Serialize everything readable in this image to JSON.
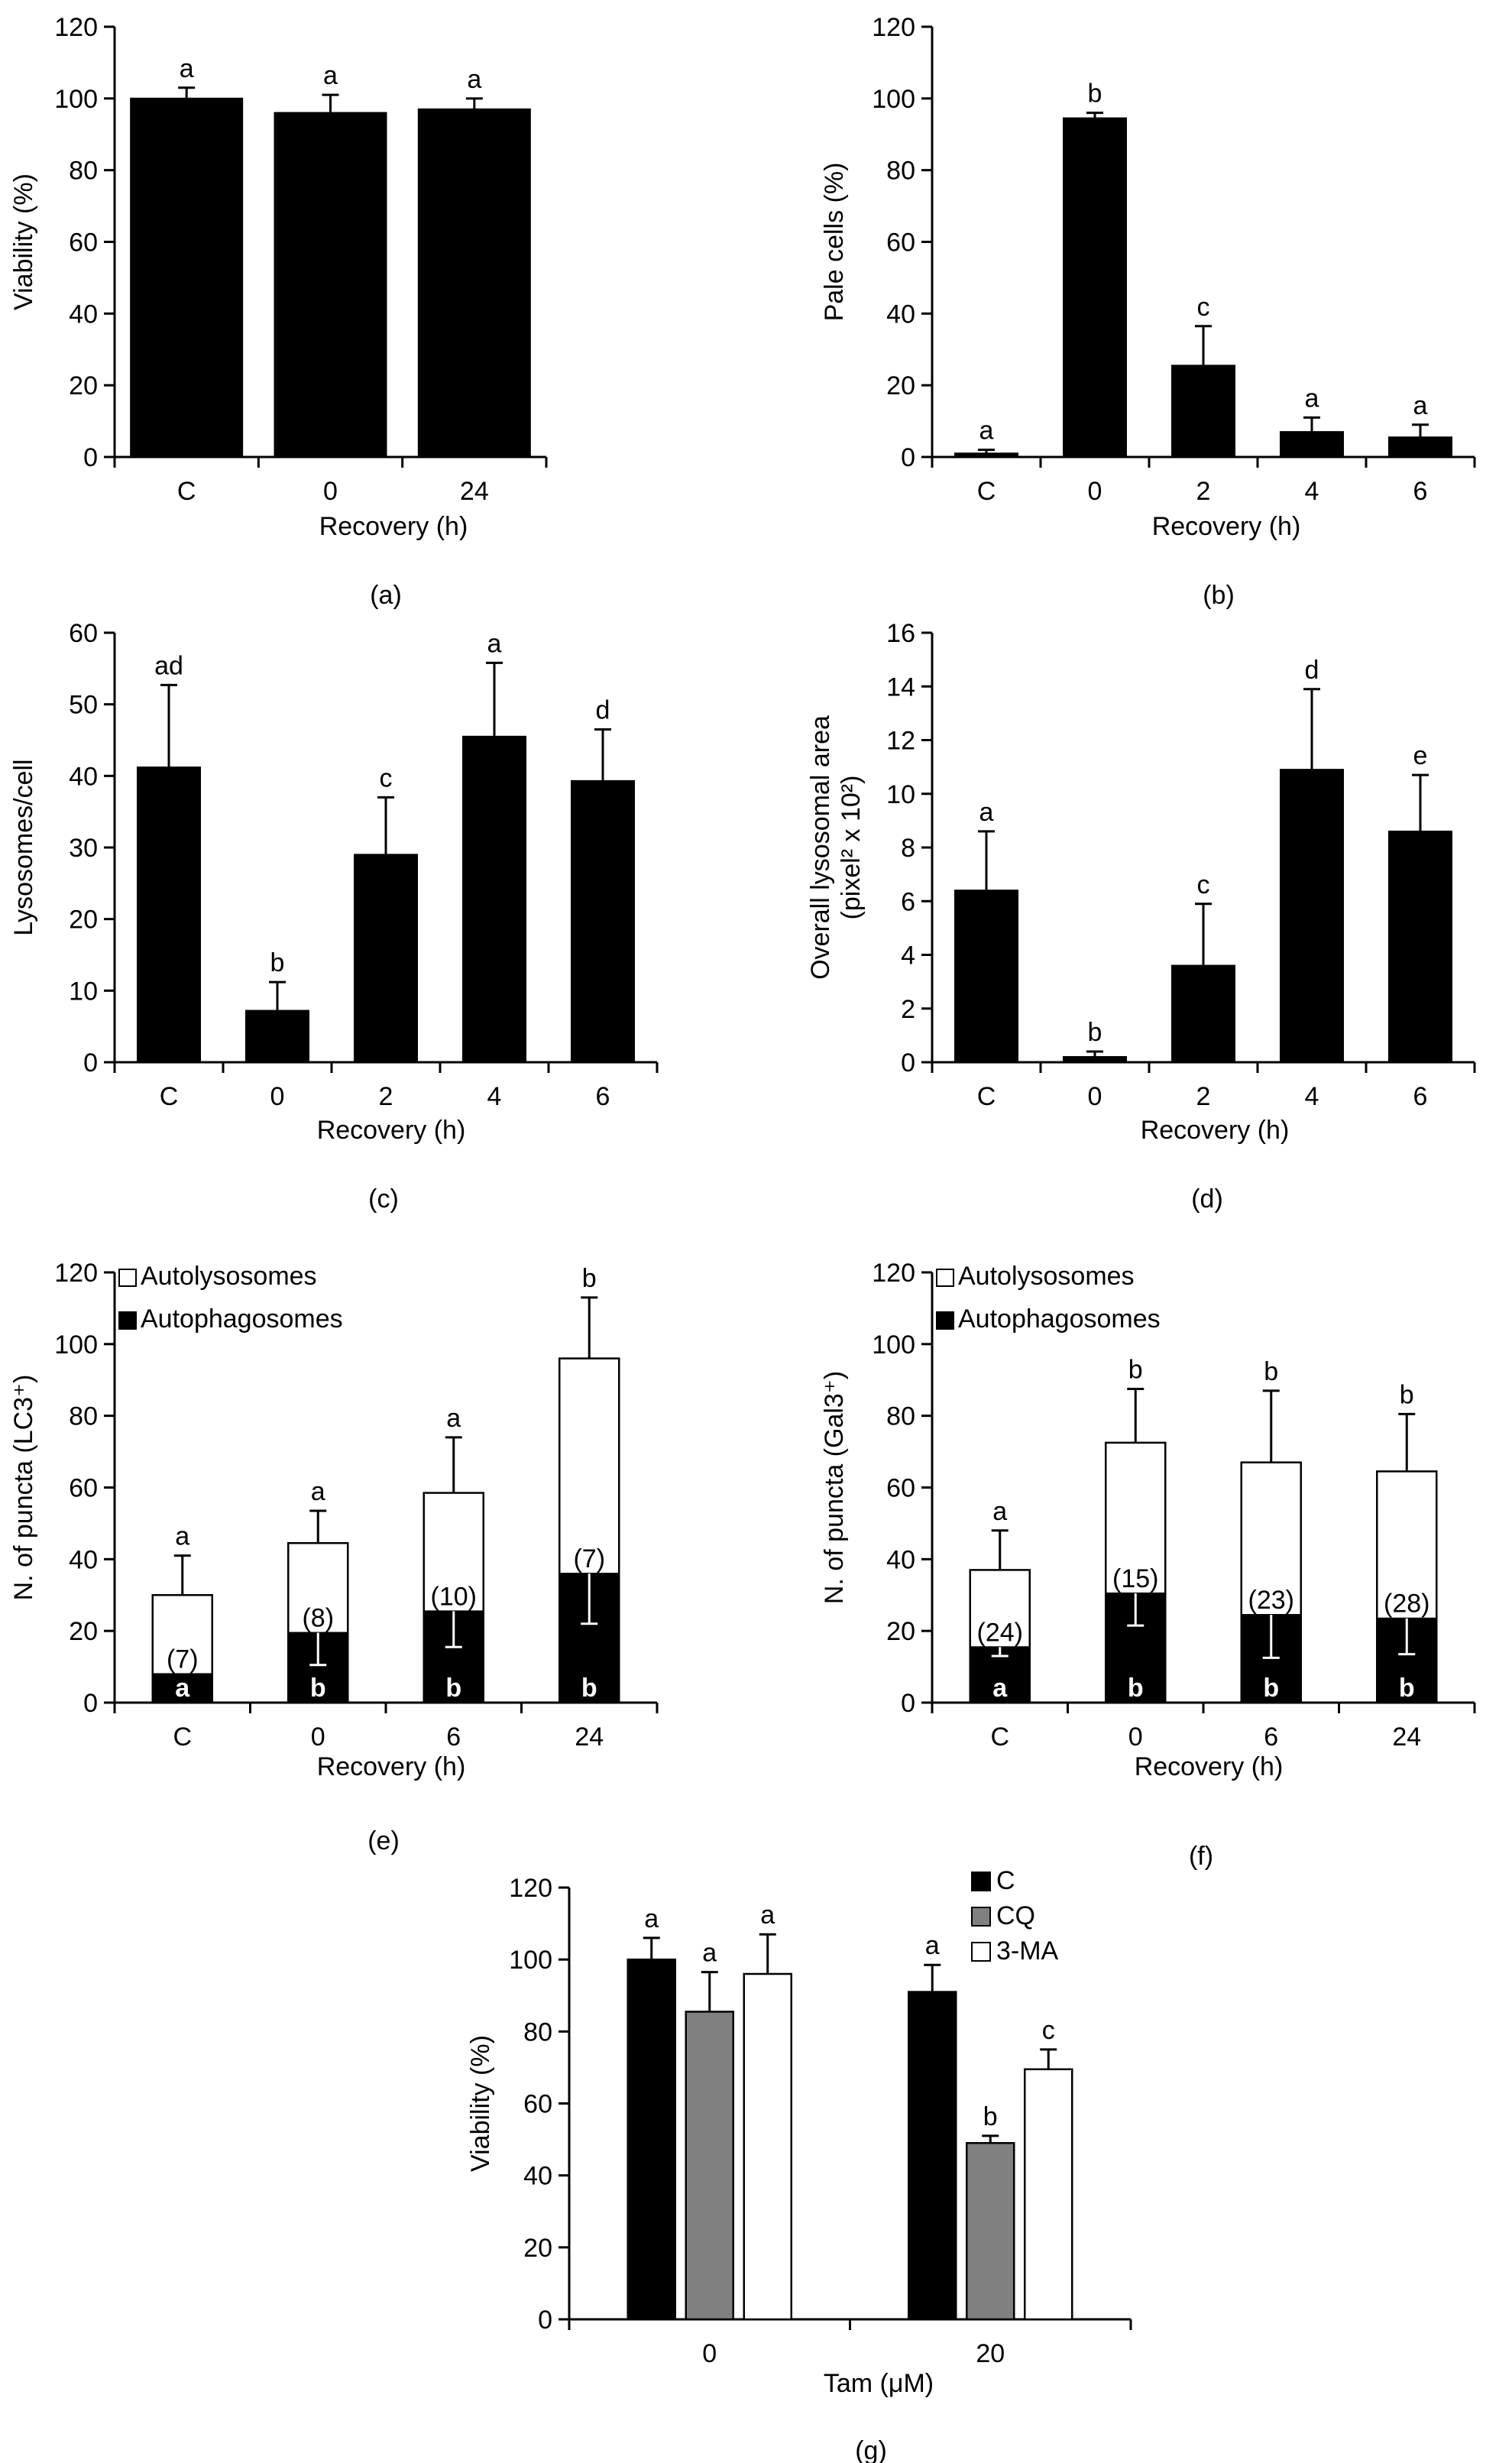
{
  "chart_data": [
    {
      "id": "a",
      "type": "bar",
      "panel_label": "(a)",
      "ylabel": "Viability (%)",
      "xlabel": "Recovery (h)",
      "ylim": [
        0,
        120
      ],
      "yticks": [
        0,
        20,
        40,
        60,
        80,
        100,
        120
      ],
      "categories": [
        "C",
        "0",
        "24"
      ],
      "values": [
        100,
        96,
        97
      ],
      "errors": [
        3,
        5,
        3
      ],
      "letters": [
        "a",
        "a",
        "a"
      ],
      "bar_color": "#000000"
    },
    {
      "id": "b",
      "type": "bar",
      "panel_label": "(b)",
      "ylabel": "Pale cells (%)",
      "xlabel": "Recovery (h)",
      "ylim": [
        0,
        120
      ],
      "yticks": [
        0,
        20,
        40,
        60,
        80,
        100,
        120
      ],
      "categories": [
        "C",
        "0",
        "2",
        "4",
        "6"
      ],
      "values": [
        1,
        94.5,
        25.5,
        7,
        5.5
      ],
      "errors": [
        1,
        1.5,
        11,
        4,
        3.5
      ],
      "letters": [
        "a",
        "b",
        "c",
        "a",
        "a"
      ],
      "bar_color": "#000000"
    },
    {
      "id": "c",
      "type": "bar",
      "panel_label": "(c)",
      "ylabel": "Lysosomes/cell",
      "xlabel": "Recovery (h)",
      "ylim": [
        0,
        60
      ],
      "yticks": [
        0,
        10,
        20,
        30,
        40,
        50,
        60
      ],
      "categories": [
        "C",
        "0",
        "2",
        "4",
        "6"
      ],
      "values": [
        41.2,
        7.2,
        29,
        45.5,
        39.3
      ],
      "errors": [
        11.5,
        4,
        8,
        10.3,
        7.2
      ],
      "letters": [
        "ad",
        "b",
        "c",
        "a",
        "d"
      ],
      "bar_color": "#000000"
    },
    {
      "id": "d",
      "type": "bar",
      "panel_label": "(d)",
      "ylabel_line1": "Overall lysosomal area",
      "ylabel_line2": "(pixel² x 10²)",
      "xlabel": "Recovery (h)",
      "ylim": [
        0,
        16
      ],
      "yticks": [
        0,
        2,
        4,
        6,
        8,
        10,
        12,
        14,
        16
      ],
      "categories": [
        "C",
        "0",
        "2",
        "4",
        "6"
      ],
      "values": [
        6.4,
        0.2,
        3.6,
        10.9,
        8.6
      ],
      "errors": [
        2.2,
        0.2,
        2.3,
        3,
        2.1
      ],
      "letters": [
        "a",
        "b",
        "c",
        "d",
        "e"
      ],
      "bar_color": "#000000"
    },
    {
      "id": "e",
      "type": "stacked-bar",
      "panel_label": "(e)",
      "ylabel": "N. of puncta (LC3⁺)",
      "xlabel": "Recovery (h)",
      "ylim": [
        0,
        120
      ],
      "yticks": [
        0,
        20,
        40,
        60,
        80,
        100,
        120
      ],
      "categories": [
        "C",
        "0",
        "6",
        "24"
      ],
      "series": [
        {
          "name": "Autophagosomes",
          "values": [
            8,
            19.5,
            25.5,
            36
          ],
          "errors": [
            0,
            9,
            10,
            14
          ],
          "letters": [
            "a",
            "b",
            "b",
            "b"
          ],
          "color": "#000000"
        },
        {
          "name": "Autolysosomes",
          "total_values": [
            30,
            44.5,
            58.5,
            96
          ],
          "errors": [
            11,
            9,
            15.5,
            17
          ],
          "letters": [
            "a",
            "a",
            "a",
            "b"
          ],
          "color": "#ffffff"
        }
      ],
      "annotations": [
        "(7)",
        "(8)",
        "(10)",
        "(7)"
      ]
    },
    {
      "id": "f",
      "type": "stacked-bar",
      "panel_label": "(f)",
      "ylabel": "N. of puncta (Gal3⁺)",
      "xlabel": "Recovery (h)",
      "ylim": [
        0,
        120
      ],
      "yticks": [
        0,
        20,
        40,
        60,
        80,
        100,
        120
      ],
      "categories": [
        "C",
        "0",
        "6",
        "24"
      ],
      "series": [
        {
          "name": "Autophagosomes",
          "values": [
            15.5,
            30.5,
            24.5,
            23.5
          ],
          "errors": [
            2.5,
            9,
            12,
            10
          ],
          "letters": [
            "a",
            "b",
            "b",
            "b"
          ],
          "color": "#000000"
        },
        {
          "name": "Autolysosomes",
          "total_values": [
            37,
            72.5,
            67,
            64.5
          ],
          "errors": [
            11,
            15,
            20,
            16
          ],
          "letters": [
            "a",
            "b",
            "b",
            "b"
          ],
          "color": "#ffffff"
        }
      ],
      "annotations": [
        "(24)",
        "(15)",
        "(23)",
        "(28)"
      ]
    },
    {
      "id": "g",
      "type": "bar",
      "panel_label": "(g)",
      "ylabel": "Viability (%)",
      "xlabel": "Tam (μM)",
      "ylim": [
        0,
        120
      ],
      "yticks": [
        0,
        20,
        40,
        60,
        80,
        100,
        120
      ],
      "categories": [
        "0",
        "20"
      ],
      "series": [
        {
          "name": "C",
          "values": [
            100,
            91
          ],
          "errors": [
            6,
            7.5
          ],
          "letters": [
            "a",
            "a"
          ],
          "color": "#000000"
        },
        {
          "name": "CQ",
          "values": [
            85.5,
            49
          ],
          "errors": [
            11,
            2
          ],
          "letters": [
            "a",
            "b"
          ],
          "color": "#808080"
        },
        {
          "name": "3-MA",
          "values": [
            96,
            69.5
          ],
          "errors": [
            11,
            5.5
          ],
          "letters": [
            "a",
            "c"
          ],
          "color": "#ffffff"
        }
      ]
    }
  ]
}
